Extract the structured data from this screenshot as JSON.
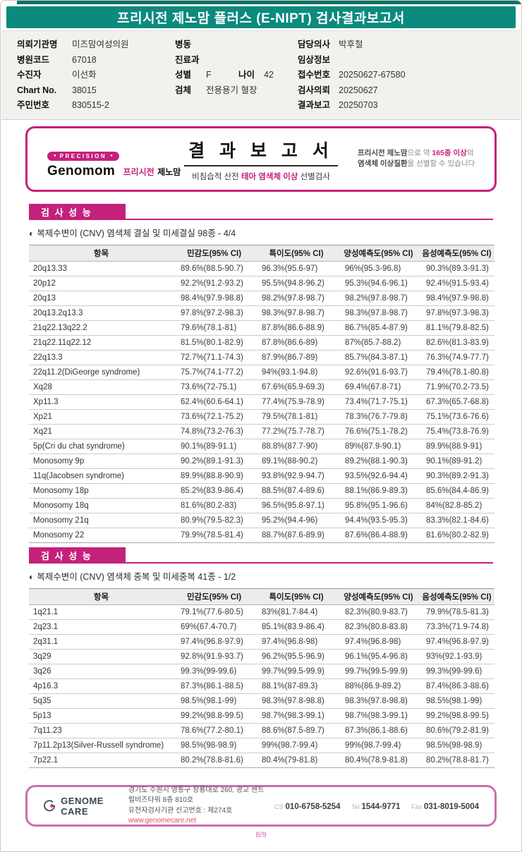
{
  "colors": {
    "banner_teal": "#0b8a7d",
    "strip_teal": "#0c7065",
    "magenta": "#c4217c",
    "footer_border_pink": "#cb6fae",
    "link_red": "#e0524a"
  },
  "icons": {
    "half_circle": "◐",
    "badge_dot": "●"
  },
  "banner": {
    "title": "프리시전 제노맘 플러스 (E-NIPT) 검사결과보고서"
  },
  "patient": {
    "org_label": "의뢰기관명",
    "org": "미즈맘여성의원",
    "hospital_code_label": "병원코드",
    "hospital_code": "67018",
    "patient_label": "수진자",
    "patient_name": "이선화",
    "chart_label": "Chart No.",
    "chart_no": "38015",
    "rrn_label": "주민번호",
    "rrn": "830515-2",
    "ward_label": "병동",
    "ward": "",
    "dept_label": "진료과",
    "dept": "",
    "sex_label": "성별",
    "sex": "F",
    "age_label": "나이",
    "age": "42",
    "specimen_label": "검체",
    "specimen": "전용용기 혈장",
    "doctor_label": "담당의사",
    "doctor": "박후철",
    "clinical_label": "임상정보",
    "clinical": "",
    "receipt_label": "접수번호",
    "receipt_no": "20250627-67580",
    "request_label": "검사의뢰",
    "request_date": "20250627",
    "report_label": "결과보고",
    "report_date": "20250703"
  },
  "report_header": {
    "badge": "PRECISION",
    "brand": "Genomom",
    "brand_sub1": "프리시전",
    "brand_sub2": "제노맘",
    "title": "결 과 보 고 서",
    "sub_prefix": "비침습적 산전 ",
    "sub_accent": "태아 염색체 이상",
    "sub_suffix": " 선별검사",
    "r1_bold": "프리시전 제노맘",
    "r1_mid": "으로 약 ",
    "r1_accent": "165종 이상",
    "r1_end": "의",
    "r2_bold": "염색체 이상질환",
    "r2_rest": "을 선별할 수 있습니다"
  },
  "sections": [
    {
      "header": "검 사 성 능",
      "subtitle": "복제수변이 (CNV) 염색체 결실 및 미세결실 98종 - 4/4",
      "columns": [
        "항목",
        "민감도(95% CI)",
        "특이도(95% CI)",
        "양성예측도(95% CI)",
        "음성예측도(95% CI)"
      ],
      "rows": [
        [
          "20q13.33",
          "89.6%(88.5-90.7)",
          "96.3%(95.6-97)",
          "96%(95.3-96.8)",
          "90.3%(89.3-91.3)"
        ],
        [
          "20p12",
          "92.2%(91.2-93.2)",
          "95.5%(94.8-96.2)",
          "95.3%(94.6-96.1)",
          "92.4%(91.5-93.4)"
        ],
        [
          "20q13",
          "98.4%(97.9-98.8)",
          "98.2%(97.8-98.7)",
          "98.2%(97.8-98.7)",
          "98.4%(97.9-98.8)"
        ],
        [
          "20q13.2q13.3",
          "97.8%(97.2-98.3)",
          "98.3%(97.8-98.7)",
          "98.3%(97.8-98.7)",
          "97.8%(97.3-98.3)"
        ],
        [
          "21q22.13q22.2",
          "79.6%(78.1-81)",
          "87.8%(86.6-88.9)",
          "86.7%(85.4-87.9)",
          "81.1%(79.8-82.5)"
        ],
        [
          "21q22.11q22.12",
          "81.5%(80.1-82.9)",
          "87.8%(86.6-89)",
          "87%(85.7-88.2)",
          "82.6%(81.3-83.9)"
        ],
        [
          "22q13.3",
          "72.7%(71.1-74.3)",
          "87.9%(86.7-89)",
          "85.7%(84.3-87.1)",
          "76.3%(74.9-77.7)"
        ],
        [
          "22q11.2(DiGeorge syndrome)",
          "75.7%(74.1-77.2)",
          "94%(93.1-94.8)",
          "92.6%(91.6-93.7)",
          "79.4%(78.1-80.8)"
        ],
        [
          "Xq28",
          "73.6%(72-75.1)",
          "67.6%(65.9-69.3)",
          "69.4%(67.8-71)",
          "71.9%(70.2-73.5)"
        ],
        [
          "Xp11.3",
          "62.4%(60.6-64.1)",
          "77.4%(75.9-78.9)",
          "73.4%(71.7-75.1)",
          "67.3%(65.7-68.8)"
        ],
        [
          "Xp21",
          "73.6%(72.1-75.2)",
          "79.5%(78.1-81)",
          "78.3%(76.7-79.8)",
          "75.1%(73.6-76.6)"
        ],
        [
          "Xq21",
          "74.8%(73.2-76.3)",
          "77.2%(75.7-78.7)",
          "76.6%(75.1-78.2)",
          "75.4%(73.8-76.9)"
        ],
        [
          "5p(Cri du chat syndrome)",
          "90.1%(89-91.1)",
          "88.8%(87.7-90)",
          "89%(87.9-90.1)",
          "89.9%(88.9-91)"
        ],
        [
          "Monosomy 9p",
          "90.2%(89.1-91.3)",
          "89.1%(88-90.2)",
          "89.2%(88.1-90.3)",
          "90.1%(89-91.2)"
        ],
        [
          "11q(Jacobsen syndrome)",
          "89.9%(88.8-90.9)",
          "93.8%(92.9-94.7)",
          "93.5%(92.6-94.4)",
          "90.3%(89.2-91.3)"
        ],
        [
          "Monosomy 18p",
          "85.2%(83.9-86.4)",
          "88.5%(87.4-89.6)",
          "88.1%(86.9-89.3)",
          "85.6%(84.4-86.9)"
        ],
        [
          "Monosomy 18q",
          "81.6%(80.2-83)",
          "96.5%(95.8-97.1)",
          "95.8%(95.1-96.6)",
          "84%(82.8-85.2)"
        ],
        [
          "Monosomy 21q",
          "80.9%(79.5-82.3)",
          "95.2%(94.4-96)",
          "94.4%(93.5-95.3)",
          "83.3%(82.1-84.6)"
        ],
        [
          "Monosomy 22",
          "79.9%(78.5-81.4)",
          "88.7%(87.6-89.9)",
          "87.6%(86.4-88.9)",
          "81.6%(80.2-82.9)"
        ]
      ]
    },
    {
      "header": "검 사 성 능",
      "subtitle": "복제수변이 (CNV) 염색체 중복 및 미세중복 41종 - 1/2",
      "columns": [
        "항목",
        "민감도(95% CI)",
        "특이도(95% CI)",
        "양성예측도(95% CI)",
        "음성예측도(95% CI)"
      ],
      "rows": [
        [
          "1q21.1",
          "79.1%(77.6-80.5)",
          "83%(81.7-84.4)",
          "82.3%(80.9-83.7)",
          "79.9%(78.5-81.3)"
        ],
        [
          "2q23.1",
          "69%(67.4-70.7)",
          "85.1%(83.9-86.4)",
          "82.3%(80.8-83.8)",
          "73.3%(71.9-74.8)"
        ],
        [
          "2q31.1",
          "97.4%(96.8-97.9)",
          "97.4%(96.8-98)",
          "97.4%(96.8-98)",
          "97.4%(96.8-97.9)"
        ],
        [
          "3q29",
          "92.8%(91.9-93.7)",
          "96.2%(95.5-96.9)",
          "96.1%(95.4-96.8)",
          "93%(92.1-93.9)"
        ],
        [
          "3q26",
          "99.3%(99-99.6)",
          "99.7%(99.5-99.9)",
          "99.7%(99.5-99.9)",
          "99.3%(99-99.6)"
        ],
        [
          "4p16.3",
          "87.3%(86.1-88.5)",
          "88.1%(87-89.3)",
          "88%(86.9-89.2)",
          "87.4%(86.3-88.6)"
        ],
        [
          "5q35",
          "98.5%(98.1-99)",
          "98.3%(97.8-98.8)",
          "98.3%(97.8-98.8)",
          "98.5%(98.1-99)"
        ],
        [
          "5p13",
          "99.2%(98.8-99.5)",
          "98.7%(98.3-99.1)",
          "98.7%(98.3-99.1)",
          "99.2%(98.8-99.5)"
        ],
        [
          "7q11.23",
          "78.6%(77.2-80.1)",
          "88.6%(87.5-89.7)",
          "87.3%(86.1-88.6)",
          "80.6%(79.2-81.9)"
        ],
        [
          "7p11.2p13(Silver-Russell syndrome)",
          "98.5%(98-98.9)",
          "99%(98.7-99.4)",
          "99%(98.7-99.4)",
          "98.5%(98-98.9)"
        ],
        [
          "7p22.1",
          "80.2%(78.8-81.6)",
          "80.4%(79-81.8)",
          "80.4%(78.9-81.8)",
          "80.2%(78.8-81.7)"
        ]
      ]
    }
  ],
  "footer": {
    "logo_text": "GENOME CARE",
    "address": "경기도 수원시 영통구 창룡대로 260, 광교 센트럴비즈타워 8층 810호",
    "license": "유전자검사기관 신고번호 : 제274호",
    "website": "www.genomecare.net",
    "contacts": [
      {
        "label": "CS",
        "number": "010-6758-5254"
      },
      {
        "label": "Tel",
        "number": "1544-9771"
      },
      {
        "label": "Fax",
        "number": "031-8019-5004"
      }
    ]
  },
  "page_number": "8/9"
}
